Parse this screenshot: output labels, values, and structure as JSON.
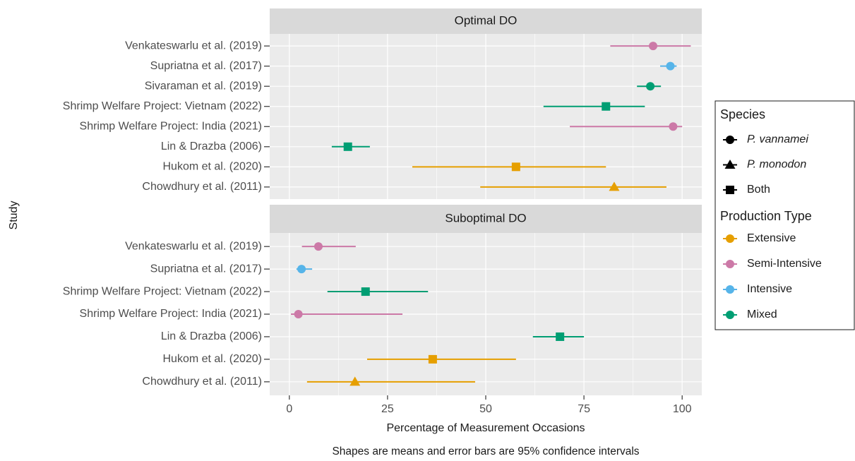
{
  "chart_data": {
    "type": "forest",
    "xlabel": "Percentage of Measurement Occasions",
    "ylabel": "Study",
    "caption": "Shapes are means and error bars are 95% confidence intervals",
    "xlim": [
      -5,
      105
    ],
    "xticks": [
      0,
      25,
      50,
      75,
      100
    ],
    "xminor": [
      12.5,
      37.5,
      62.5,
      87.5
    ],
    "grid": true,
    "legend_position": "right",
    "facets": [
      {
        "title": "Optimal DO",
        "categories": [
          "Venkateswarlu et al. (2019)",
          "Supriatna et al. (2017)",
          "Sivaraman et al. (2019)",
          "Shrimp Welfare Project: Vietnam (2022)",
          "Shrimp Welfare Project: India (2021)",
          "Lin & Drazba (2006)",
          "Hukom et al. (2020)",
          "Chowdhury et al. (2011)"
        ],
        "values": [
          92.6,
          97,
          91.9,
          80.6,
          97.7,
          14.9,
          57.7,
          82.7
        ],
        "lower": [
          81.7,
          94.4,
          88.5,
          64.7,
          71.4,
          10.8,
          31.3,
          48.6
        ],
        "upper": [
          102.2,
          98.6,
          94.6,
          90.5,
          100,
          20.5,
          80.6,
          96
        ],
        "species": [
          "P. vannamei",
          "P. vannamei",
          "P. vannamei",
          "Both",
          "P. vannamei",
          "Both",
          "Both",
          "P. monodon"
        ],
        "production": [
          "Semi-Intensive",
          "Intensive",
          "Mixed",
          "Mixed",
          "Semi-Intensive",
          "Mixed",
          "Extensive",
          "Extensive"
        ]
      },
      {
        "title": "Suboptimal DO",
        "categories": [
          "Venkateswarlu et al. (2019)",
          "Supriatna et al. (2017)",
          "Shrimp Welfare Project: Vietnam (2022)",
          "Shrimp Welfare Project: India (2021)",
          "Lin & Drazba (2006)",
          "Hukom et al. (2020)",
          "Chowdhury et al. (2011)"
        ],
        "values": [
          7.4,
          3.1,
          19.4,
          2.3,
          68.9,
          36.5,
          16.7
        ],
        "lower": [
          3.2,
          1.8,
          9.7,
          0.4,
          62,
          19.8,
          4.5
        ],
        "upper": [
          16.9,
          5.8,
          35.3,
          28.8,
          75,
          57.7,
          47.3
        ],
        "species": [
          "P. vannamei",
          "P. vannamei",
          "Both",
          "P. vannamei",
          "Both",
          "Both",
          "P. monodon"
        ],
        "production": [
          "Semi-Intensive",
          "Intensive",
          "Mixed",
          "Semi-Intensive",
          "Mixed",
          "Extensive",
          "Extensive"
        ]
      }
    ],
    "species_legend": {
      "title": "Species",
      "items": [
        {
          "name": "P. vannamei",
          "shape": "circle",
          "italic": true
        },
        {
          "name": "P. monodon",
          "shape": "triangle",
          "italic": true
        },
        {
          "name": "Both",
          "shape": "square",
          "italic": false
        }
      ]
    },
    "production_legend": {
      "title": "Production Type",
      "items": [
        {
          "name": "Extensive",
          "color": "#E69F00"
        },
        {
          "name": "Semi-Intensive",
          "color": "#CC79A7"
        },
        {
          "name": "Intensive",
          "color": "#56B4E9"
        },
        {
          "name": "Mixed",
          "color": "#009E73"
        }
      ]
    }
  }
}
